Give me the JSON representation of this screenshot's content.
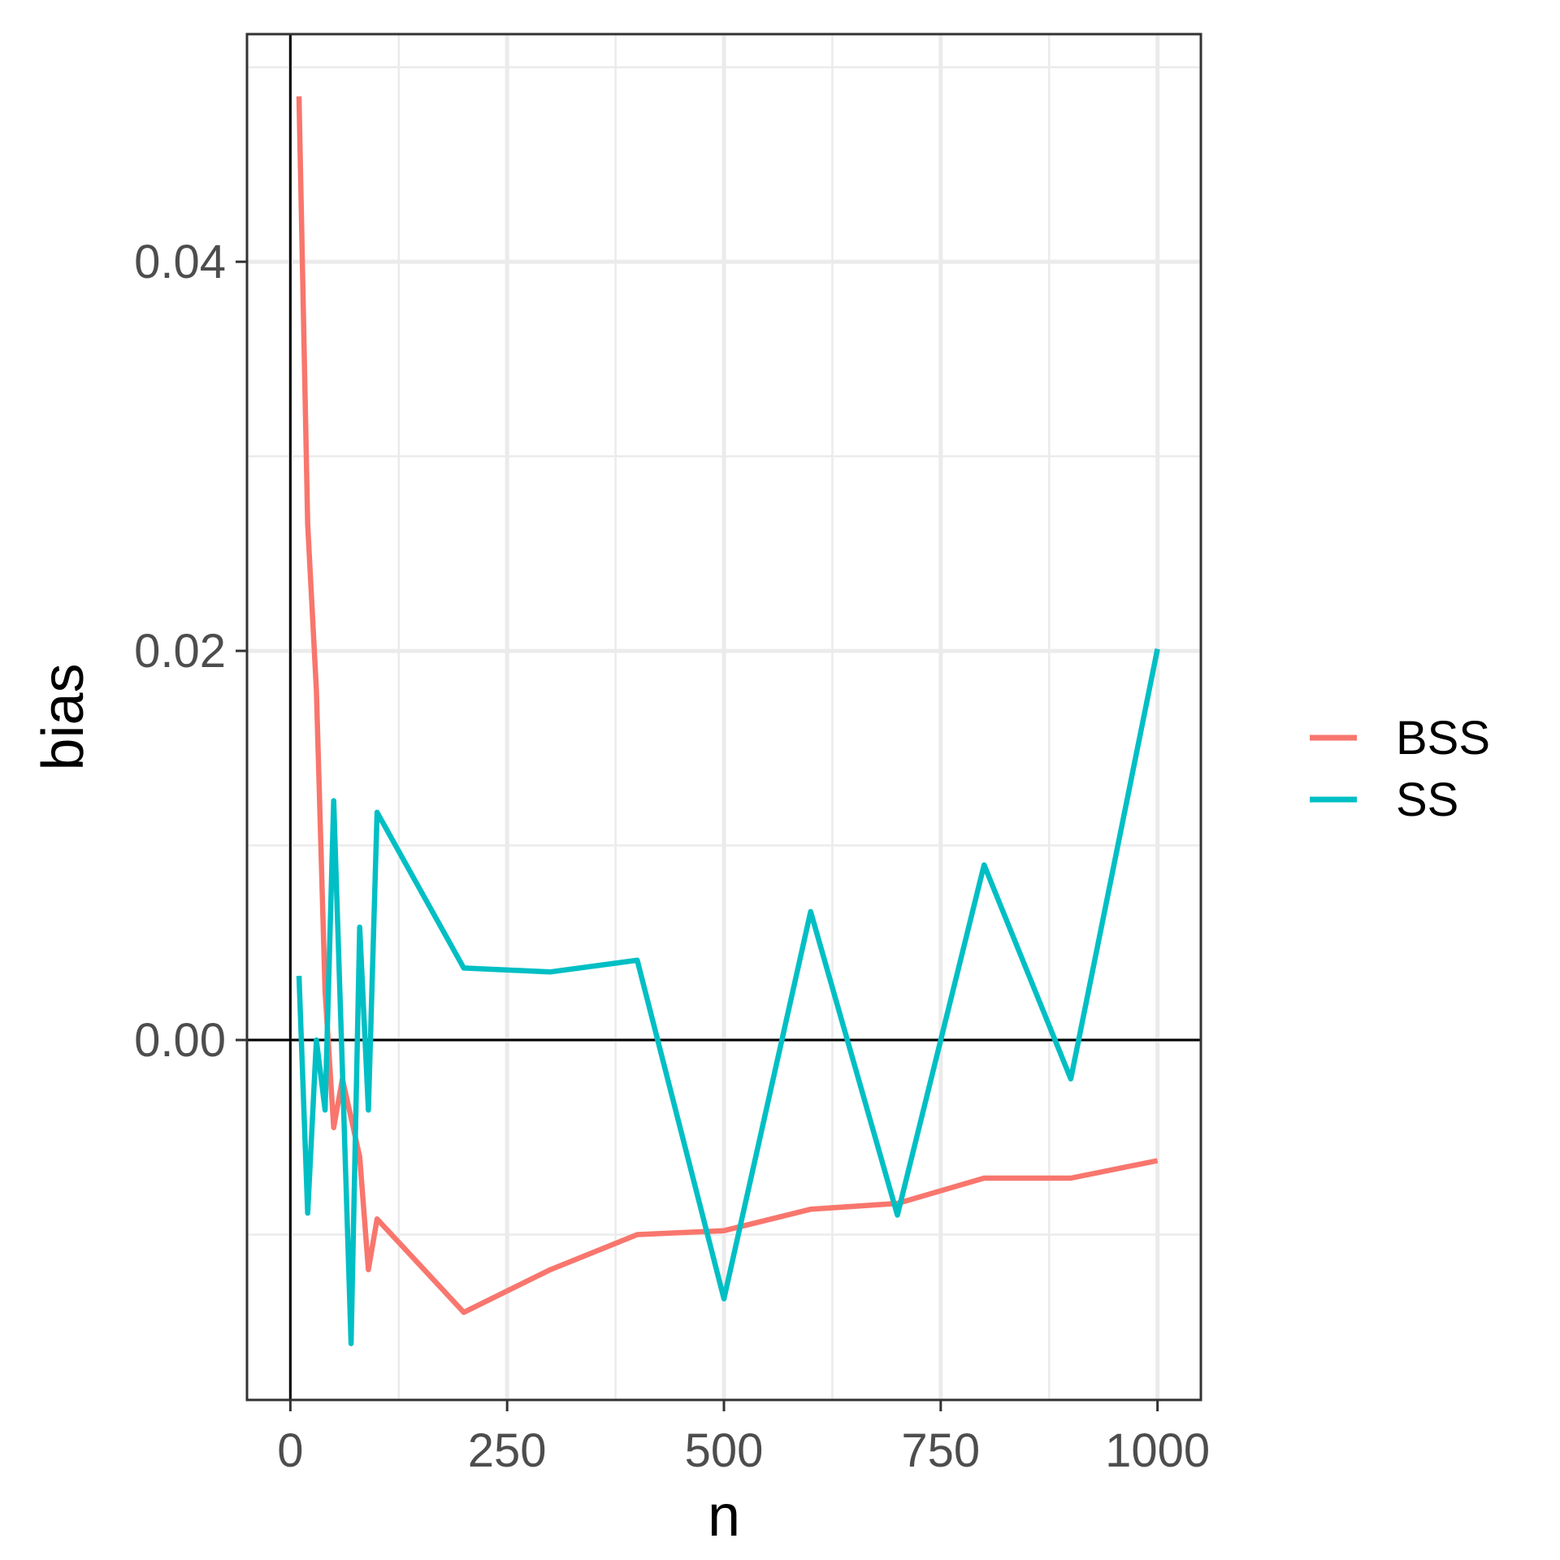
{
  "chart_data": {
    "type": "line",
    "xlabel": "n",
    "ylabel": "bias",
    "xlim": [
      -50,
      1050
    ],
    "ylim": [
      -0.0185,
      0.0517
    ],
    "x_ticks": [
      0,
      250,
      500,
      750,
      1000
    ],
    "x_tick_labels": [
      "0",
      "250",
      "500",
      "750",
      "1000"
    ],
    "y_ticks": [
      0.0,
      0.02,
      0.04
    ],
    "y_tick_labels": [
      "0.00",
      "0.02",
      "0.04"
    ],
    "x_minor": [
      125,
      375,
      625,
      875
    ],
    "y_minor": [
      -0.01,
      0.01,
      0.03,
      0.05
    ],
    "reference_lines": {
      "x": 0,
      "y": 0
    },
    "grid": true,
    "legend": "right",
    "series": [
      {
        "name": "BSS",
        "color": "#F8766D",
        "x": [
          10,
          20,
          30,
          40,
          50,
          60,
          70,
          80,
          90,
          100,
          200,
          300,
          400,
          500,
          600,
          700,
          800,
          900,
          1000
        ],
        "y": [
          0.0485,
          0.0265,
          0.018,
          0.0025,
          -0.0045,
          -0.002,
          -0.004,
          -0.006,
          -0.0118,
          -0.0092,
          -0.014,
          -0.0118,
          -0.01,
          -0.0098,
          -0.0087,
          -0.0084,
          -0.0071,
          -0.0071,
          -0.0062
        ]
      },
      {
        "name": "SS",
        "color": "#00BFC4",
        "x": [
          10,
          20,
          30,
          40,
          50,
          60,
          70,
          80,
          90,
          100,
          200,
          300,
          400,
          500,
          600,
          700,
          800,
          900,
          1000
        ],
        "y": [
          0.0033,
          -0.0089,
          0.0,
          -0.0036,
          0.0123,
          -0.0015,
          -0.0156,
          0.0058,
          -0.0036,
          0.0117,
          0.0037,
          0.0035,
          0.0041,
          -0.0133,
          0.0066,
          -0.009,
          0.009,
          -0.002,
          0.0201
        ]
      }
    ]
  }
}
